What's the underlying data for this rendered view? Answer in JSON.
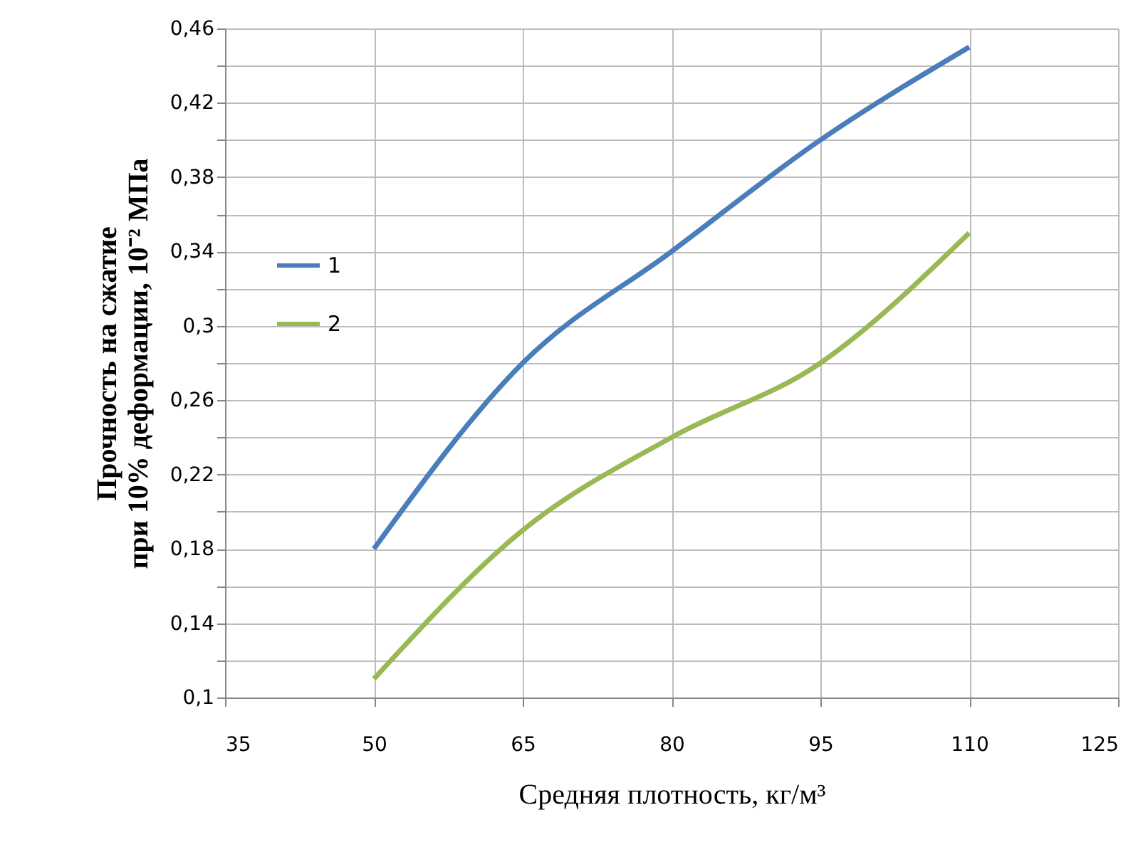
{
  "chart_data": {
    "type": "line",
    "xlabel": "Средняя плотность, кг/м³",
    "ylabel": "Прочность на сжатие\nпри 10% деформации, 10⁻²  МПа",
    "x": [
      50,
      65,
      80,
      95,
      110
    ],
    "series": [
      {
        "name": "1",
        "color": "#4a7ebb",
        "values": [
          0.18,
          0.28,
          0.34,
          0.4,
          0.45
        ]
      },
      {
        "name": "2",
        "color": "#98b954",
        "values": [
          0.11,
          0.19,
          0.24,
          0.28,
          0.35
        ]
      }
    ],
    "xlim": [
      35,
      125
    ],
    "xticks": [
      35,
      50,
      65,
      80,
      95,
      110,
      125
    ],
    "ylim": [
      0.1,
      0.46
    ],
    "yticks": [
      {
        "value": 0.1,
        "label": "0,1"
      },
      {
        "value": 0.12,
        "label": null
      },
      {
        "value": 0.14,
        "label": "0,14"
      },
      {
        "value": 0.16,
        "label": null
      },
      {
        "value": 0.18,
        "label": "0,18"
      },
      {
        "value": 0.2,
        "label": null
      },
      {
        "value": 0.22,
        "label": "0,22"
      },
      {
        "value": 0.24,
        "label": null
      },
      {
        "value": 0.26,
        "label": "0,26"
      },
      {
        "value": 0.28,
        "label": null
      },
      {
        "value": 0.3,
        "label": "0,3"
      },
      {
        "value": 0.32,
        "label": null
      },
      {
        "value": 0.34,
        "label": "0,34"
      },
      {
        "value": 0.36,
        "label": null
      },
      {
        "value": 0.38,
        "label": "0,38"
      },
      {
        "value": 0.4,
        "label": null
      },
      {
        "value": 0.42,
        "label": "0,42"
      },
      {
        "value": 0.44,
        "label": null
      },
      {
        "value": 0.46,
        "label": "0,46"
      }
    ],
    "grid": true,
    "legend": "left",
    "marker": "none",
    "line_style": "solid"
  }
}
